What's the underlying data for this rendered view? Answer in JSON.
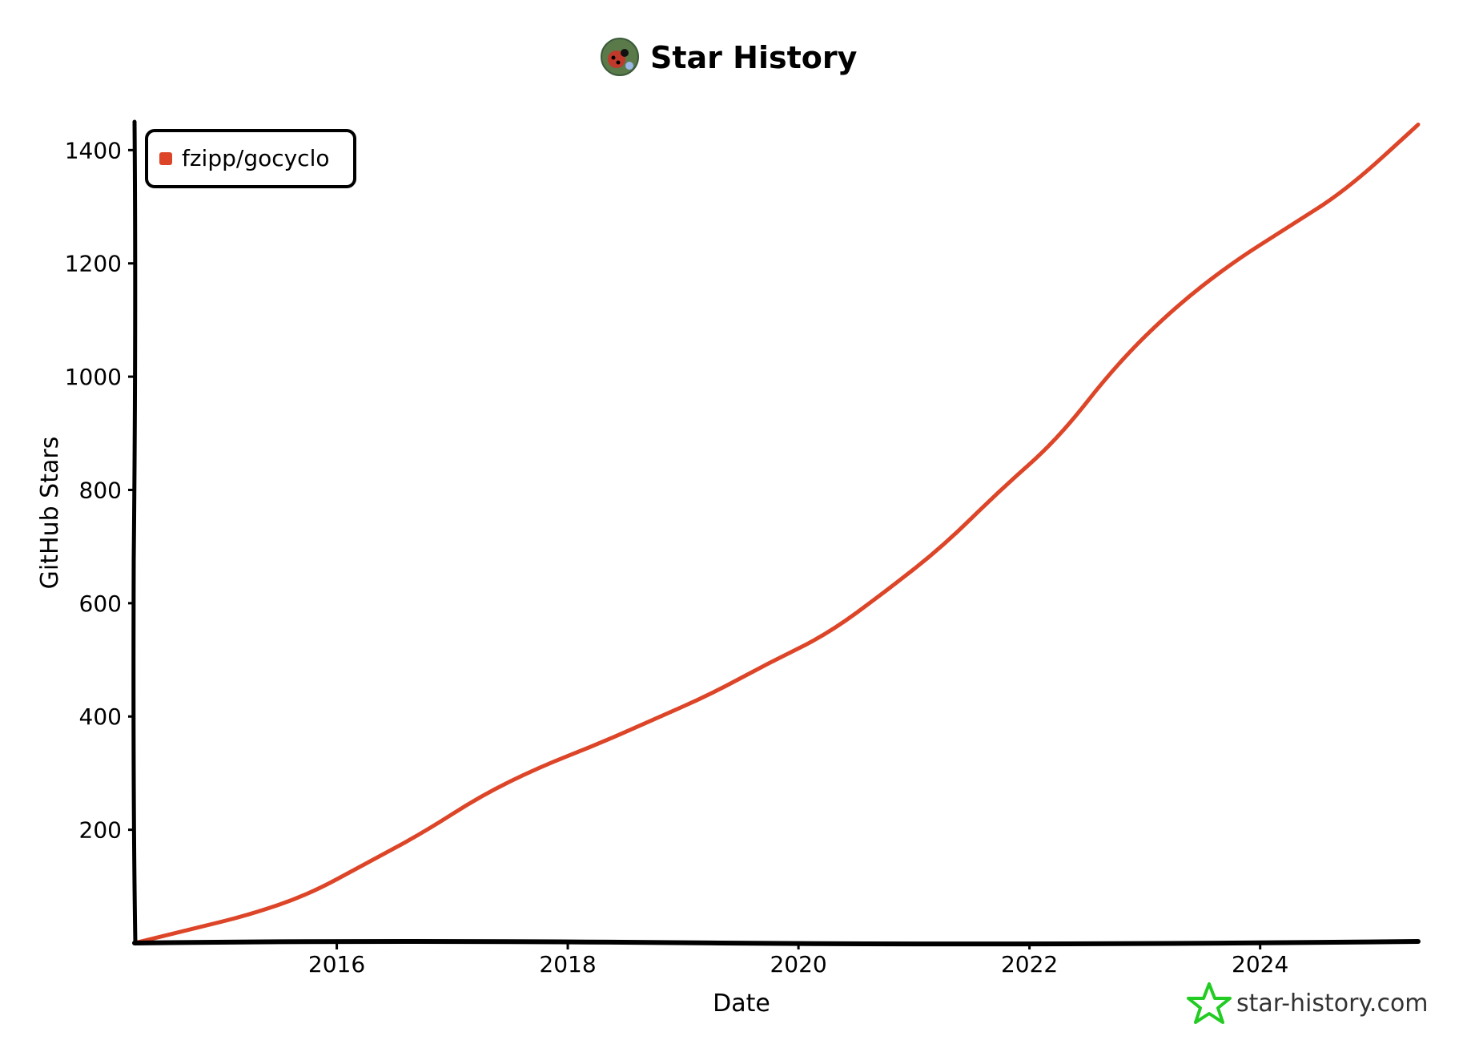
{
  "header": {
    "title": "Star History",
    "avatar_icon": "ladybug-avatar-icon"
  },
  "watermark": {
    "text": "star-history.com",
    "icon": "star-outline-icon",
    "icon_color": "#22cc22"
  },
  "colors": {
    "series": "#dd4528",
    "axis": "#000000",
    "background": "#ffffff"
  },
  "chart_data": {
    "type": "line",
    "title": "Star History",
    "xlabel": "Date",
    "ylabel": "GitHub Stars",
    "x_type": "date",
    "xlim": [
      "2014-04-01",
      "2025-05-15"
    ],
    "ylim": [
      0,
      1450
    ],
    "x_ticks": [
      "2016",
      "2018",
      "2020",
      "2022",
      "2024"
    ],
    "y_ticks": [
      200,
      400,
      600,
      800,
      1000,
      1200,
      1400
    ],
    "grid": false,
    "legend_position": "top-left",
    "series": [
      {
        "name": "fzipp/gocyclo",
        "color": "#dd4528",
        "points": [
          [
            "2014-04-01",
            0
          ],
          [
            "2014-10-01",
            25
          ],
          [
            "2015-04-01",
            50
          ],
          [
            "2015-10-01",
            85
          ],
          [
            "2016-04-01",
            140
          ],
          [
            "2016-10-01",
            195
          ],
          [
            "2017-04-01",
            260
          ],
          [
            "2017-10-01",
            310
          ],
          [
            "2018-04-01",
            350
          ],
          [
            "2018-10-01",
            395
          ],
          [
            "2019-04-01",
            440
          ],
          [
            "2019-10-01",
            495
          ],
          [
            "2020-04-01",
            545
          ],
          [
            "2020-10-01",
            620
          ],
          [
            "2021-04-01",
            700
          ],
          [
            "2021-10-01",
            800
          ],
          [
            "2022-04-01",
            890
          ],
          [
            "2022-10-01",
            1020
          ],
          [
            "2023-04-01",
            1120
          ],
          [
            "2023-10-01",
            1200
          ],
          [
            "2024-04-01",
            1265
          ],
          [
            "2024-10-01",
            1330
          ],
          [
            "2025-05-15",
            1445
          ]
        ]
      }
    ]
  }
}
